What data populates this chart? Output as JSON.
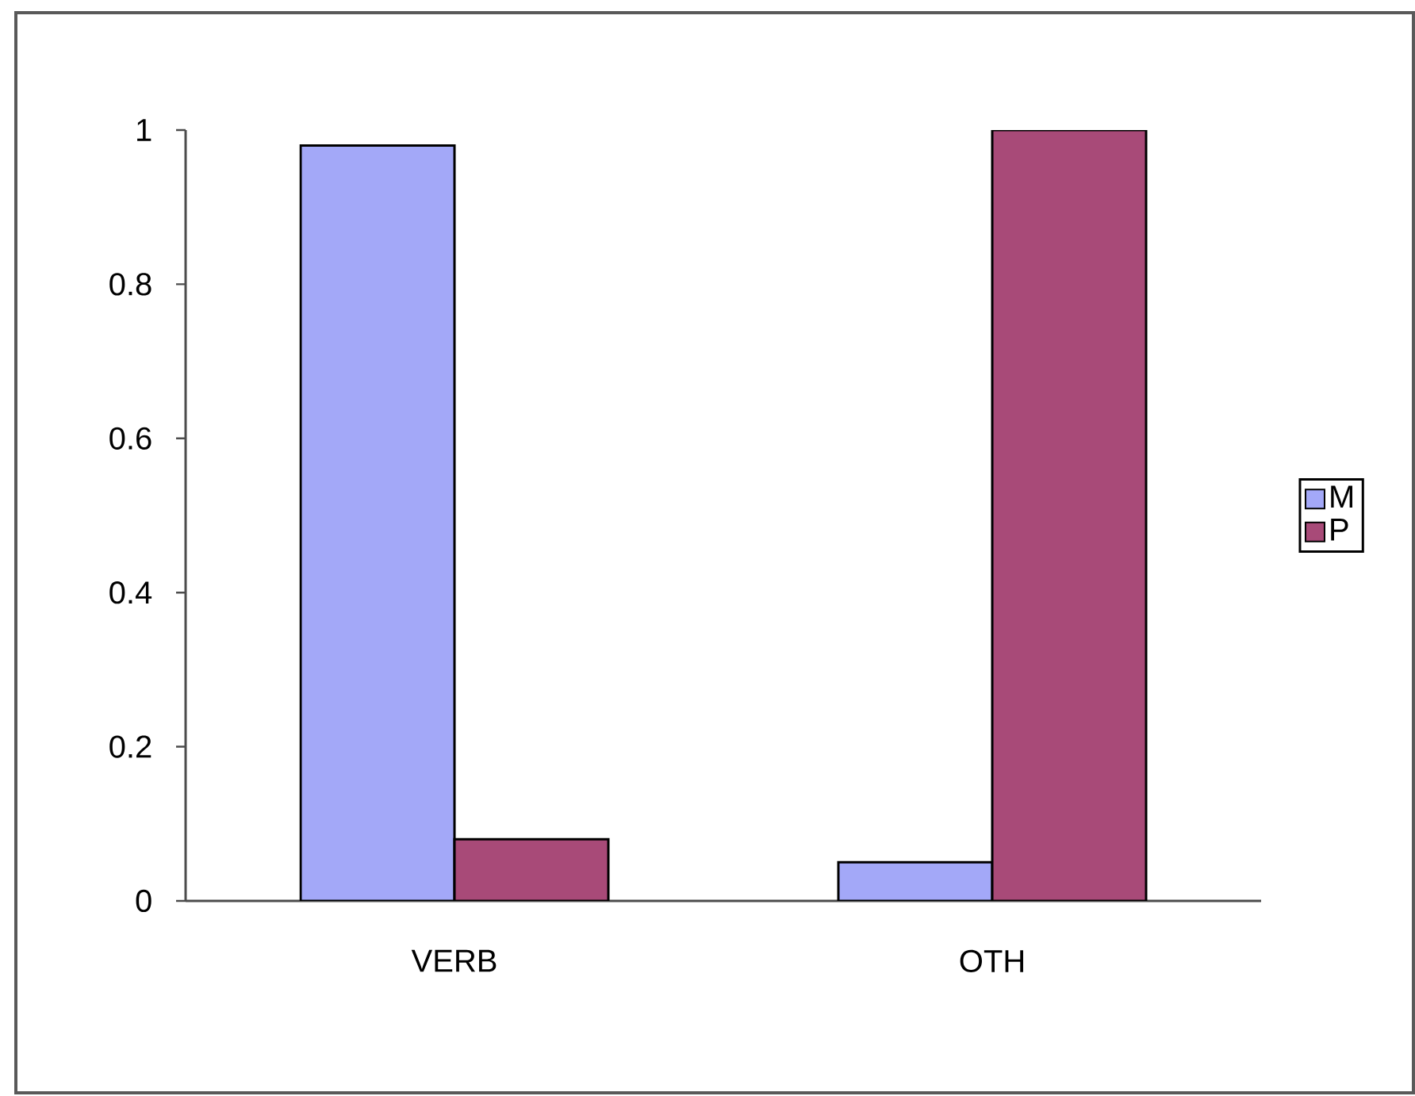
{
  "chart_data": {
    "type": "bar",
    "categories": [
      "VERB",
      "OTH"
    ],
    "series": [
      {
        "name": "M",
        "color": "#a3a8f8",
        "values": [
          0.98,
          0.05
        ]
      },
      {
        "name": "P",
        "color": "#a84a78",
        "values": [
          0.08,
          1.0
        ]
      }
    ],
    "ylim": [
      0,
      1
    ],
    "yticks": [
      0,
      0.2,
      0.4,
      0.6,
      0.8,
      1
    ],
    "legend": "right"
  }
}
